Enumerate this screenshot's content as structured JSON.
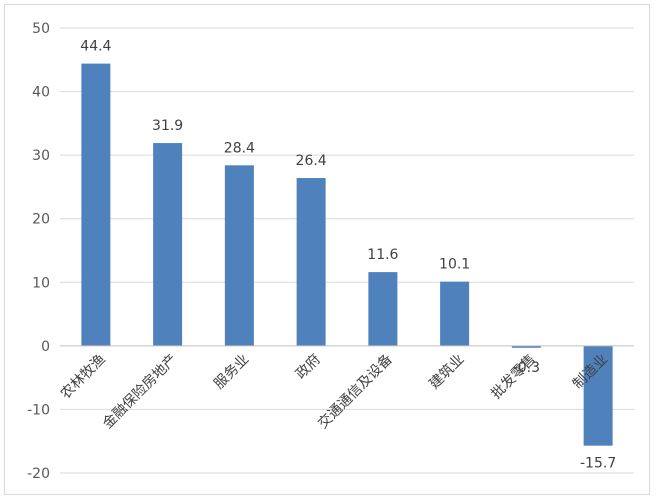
{
  "chart_data": {
    "type": "bar",
    "title": "",
    "xlabel": "",
    "ylabel": "",
    "categories": [
      "农林牧渔",
      "金融保险房地产",
      "服务业",
      "政府",
      "交通通信及设备",
      "建筑业",
      "批发零售",
      "制造业"
    ],
    "values": [
      44.4,
      31.9,
      28.4,
      26.4,
      11.6,
      10.1,
      -0.3,
      -15.7
    ],
    "value_labels": [
      "44.4",
      "31.9",
      "28.4",
      "26.4",
      "11.6",
      "10.1",
      "-0.3",
      "-15.7"
    ],
    "ylim": [
      -20,
      50
    ],
    "yticks": [
      "50",
      "40",
      "30",
      "20",
      "10",
      "0",
      "-10",
      "-20"
    ],
    "ytick_values": [
      50,
      40,
      30,
      20,
      10,
      0,
      -10,
      -20
    ],
    "grid": true,
    "legend": "none",
    "bar_color": "#4f81bd",
    "grid_color": "#d9d9d9"
  }
}
